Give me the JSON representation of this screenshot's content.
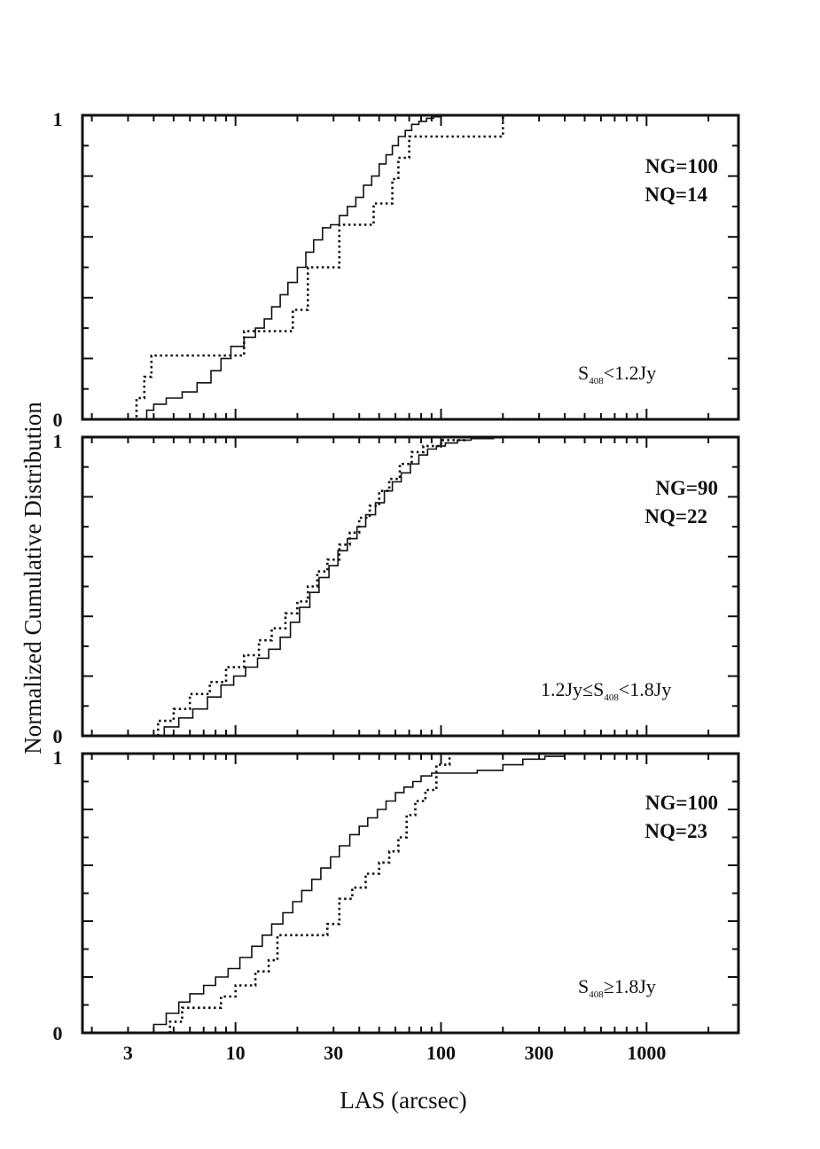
{
  "chart_data": {
    "type": "line",
    "xlabel": "LAS (arcsec)",
    "ylabel": "Normalized Cumulative Distribution",
    "xscale": "log",
    "xlim": [
      1.8,
      2800
    ],
    "ylim": [
      0,
      1
    ],
    "xticks": [
      3,
      10,
      30,
      100,
      300,
      1000
    ],
    "xtick_labels": [
      "3",
      "10",
      "30",
      "100",
      "300",
      "1000"
    ],
    "yticks": [
      0,
      1
    ],
    "ytick_labels": [
      "0",
      "1"
    ],
    "panels": [
      {
        "ng_label": "NG=100",
        "nq_label": "NQ=14",
        "flux_label": {
          "base": "S",
          "sub": "408",
          "rest": "<1.2Jy",
          "prefix": ""
        },
        "series": [
          {
            "style": "solid",
            "x": [
              3.4,
              3.7,
              4.0,
              4.6,
              5.5,
              6.5,
              7.6,
              8.5,
              9.5,
              11.0,
              12.5,
              13.8,
              15.0,
              16.5,
              18.0,
              20.0,
              22.0,
              24.0,
              26.5,
              29.0,
              32.0,
              35.0,
              38.5,
              42.0,
              46.0,
              50.0,
              54.0,
              58.0,
              62.0,
              67.0,
              72.0,
              78.0,
              85.0,
              92.0,
              100.0
            ],
            "y": [
              0.0,
              0.03,
              0.05,
              0.07,
              0.09,
              0.12,
              0.16,
              0.2,
              0.24,
              0.27,
              0.3,
              0.33,
              0.37,
              0.41,
              0.45,
              0.5,
              0.55,
              0.59,
              0.63,
              0.64,
              0.67,
              0.7,
              0.73,
              0.77,
              0.8,
              0.84,
              0.87,
              0.9,
              0.93,
              0.95,
              0.97,
              0.98,
              0.99,
              0.995,
              1.0
            ]
          },
          {
            "style": "dotted",
            "x": [
              3.0,
              3.3,
              3.6,
              3.9,
              8.0,
              11.0,
              17.0,
              19.0,
              22.5,
              26.0,
              30.0,
              32.0,
              45.0,
              47.0,
              58.0,
              62.0,
              70.0,
              100.0,
              200.0
            ],
            "y": [
              0.0,
              0.07,
              0.14,
              0.21,
              0.21,
              0.29,
              0.29,
              0.36,
              0.5,
              0.5,
              0.5,
              0.64,
              0.64,
              0.71,
              0.79,
              0.86,
              0.93,
              0.93,
              1.0
            ]
          }
        ]
      },
      {
        "ng_label": "NG=90",
        "nq_label": "NQ=22",
        "flux_label": {
          "base": "S",
          "sub": "408",
          "rest": "<1.8Jy",
          "prefix": "1.2Jy≤"
        },
        "series": [
          {
            "style": "solid",
            "x": [
              3.8,
              4.5,
              5.3,
              6.2,
              7.3,
              8.5,
              9.8,
              11.2,
              12.8,
              14.5,
              16.5,
              18.5,
              20.5,
              23.0,
              25.5,
              28.5,
              31.5,
              35.0,
              39.0,
              43.0,
              48.0,
              53.0,
              58.0,
              64.0,
              71.0,
              78.0,
              86.0,
              95.0,
              105.0,
              120.0,
              140.0,
              180.0,
              210.0
            ],
            "y": [
              0.0,
              0.03,
              0.06,
              0.09,
              0.13,
              0.17,
              0.2,
              0.23,
              0.26,
              0.29,
              0.33,
              0.38,
              0.43,
              0.48,
              0.53,
              0.57,
              0.62,
              0.66,
              0.7,
              0.74,
              0.78,
              0.82,
              0.85,
              0.88,
              0.91,
              0.94,
              0.96,
              0.97,
              0.98,
              0.99,
              0.995,
              1.0,
              1.0
            ]
          },
          {
            "style": "dotted",
            "x": [
              3.5,
              4.2,
              5.0,
              6.0,
              7.5,
              9.0,
              11.0,
              13.0,
              15.0,
              17.5,
              20.0,
              22.5,
              25.0,
              28.0,
              32.0,
              36.0,
              40.0,
              45.0,
              50.0,
              56.0,
              63.0,
              72.0,
              82.0,
              100.0,
              130.0
            ],
            "y": [
              0.0,
              0.05,
              0.09,
              0.14,
              0.18,
              0.23,
              0.27,
              0.32,
              0.36,
              0.41,
              0.45,
              0.5,
              0.55,
              0.59,
              0.64,
              0.68,
              0.73,
              0.77,
              0.82,
              0.86,
              0.91,
              0.95,
              0.97,
              0.99,
              1.0
            ]
          }
        ]
      },
      {
        "ng_label": "NG=100",
        "nq_label": "NQ=23",
        "flux_label": {
          "base": "S",
          "sub": "408",
          "rest": "≥1.8Jy",
          "prefix": ""
        },
        "series": [
          {
            "style": "solid",
            "x": [
              3.5,
              4.0,
              4.6,
              5.3,
              6.0,
              7.0,
              8.0,
              9.2,
              10.5,
              12.0,
              13.5,
              15.0,
              17.0,
              19.0,
              21.0,
              23.5,
              26.0,
              29.0,
              32.0,
              36.0,
              40.0,
              44.0,
              49.0,
              54.0,
              60.0,
              66.0,
              73.0,
              80.0,
              90.0,
              110.0,
              150.0,
              200.0,
              250.0,
              320.0,
              400.0
            ],
            "y": [
              0.0,
              0.03,
              0.07,
              0.11,
              0.14,
              0.17,
              0.2,
              0.23,
              0.27,
              0.31,
              0.35,
              0.39,
              0.43,
              0.47,
              0.51,
              0.55,
              0.59,
              0.63,
              0.67,
              0.71,
              0.74,
              0.77,
              0.8,
              0.83,
              0.86,
              0.88,
              0.9,
              0.92,
              0.93,
              0.93,
              0.94,
              0.96,
              0.98,
              0.99,
              1.0
            ]
          },
          {
            "style": "dotted",
            "x": [
              4.0,
              4.8,
              5.5,
              8.5,
              10.0,
              12.5,
              14.5,
              16.0,
              24.0,
              28.0,
              32.0,
              37.0,
              43.0,
              50.0,
              56.0,
              62.0,
              68.0,
              75.0,
              84.0,
              95.0,
              110.0
            ],
            "y": [
              0.0,
              0.04,
              0.09,
              0.13,
              0.17,
              0.22,
              0.26,
              0.35,
              0.35,
              0.39,
              0.48,
              0.52,
              0.57,
              0.61,
              0.65,
              0.7,
              0.78,
              0.83,
              0.87,
              0.96,
              1.0
            ]
          }
        ]
      }
    ]
  }
}
